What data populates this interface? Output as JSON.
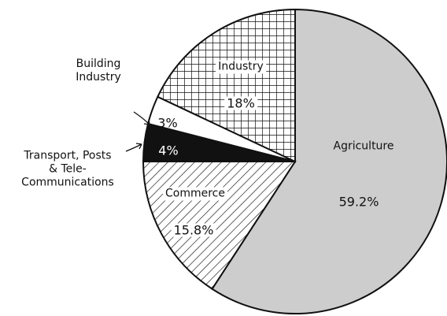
{
  "chart_data": {
    "type": "pie",
    "categories": [
      "Agriculture",
      "Commerce",
      "Transport, Posts\n& Tele-\nCommunications",
      "Building\nIndustry",
      "Industry"
    ],
    "values": [
      59.2,
      15.8,
      4,
      3,
      18
    ],
    "value_labels": [
      "59.2%",
      "15.8%",
      "4%",
      "3%",
      "18%"
    ],
    "colors": [
      "#cdcdcd",
      "#ffffff",
      "#111111",
      "#ffffff",
      "#ffffff"
    ],
    "patterns": [
      "none",
      "diagonal",
      "none",
      "none",
      "grid"
    ]
  }
}
